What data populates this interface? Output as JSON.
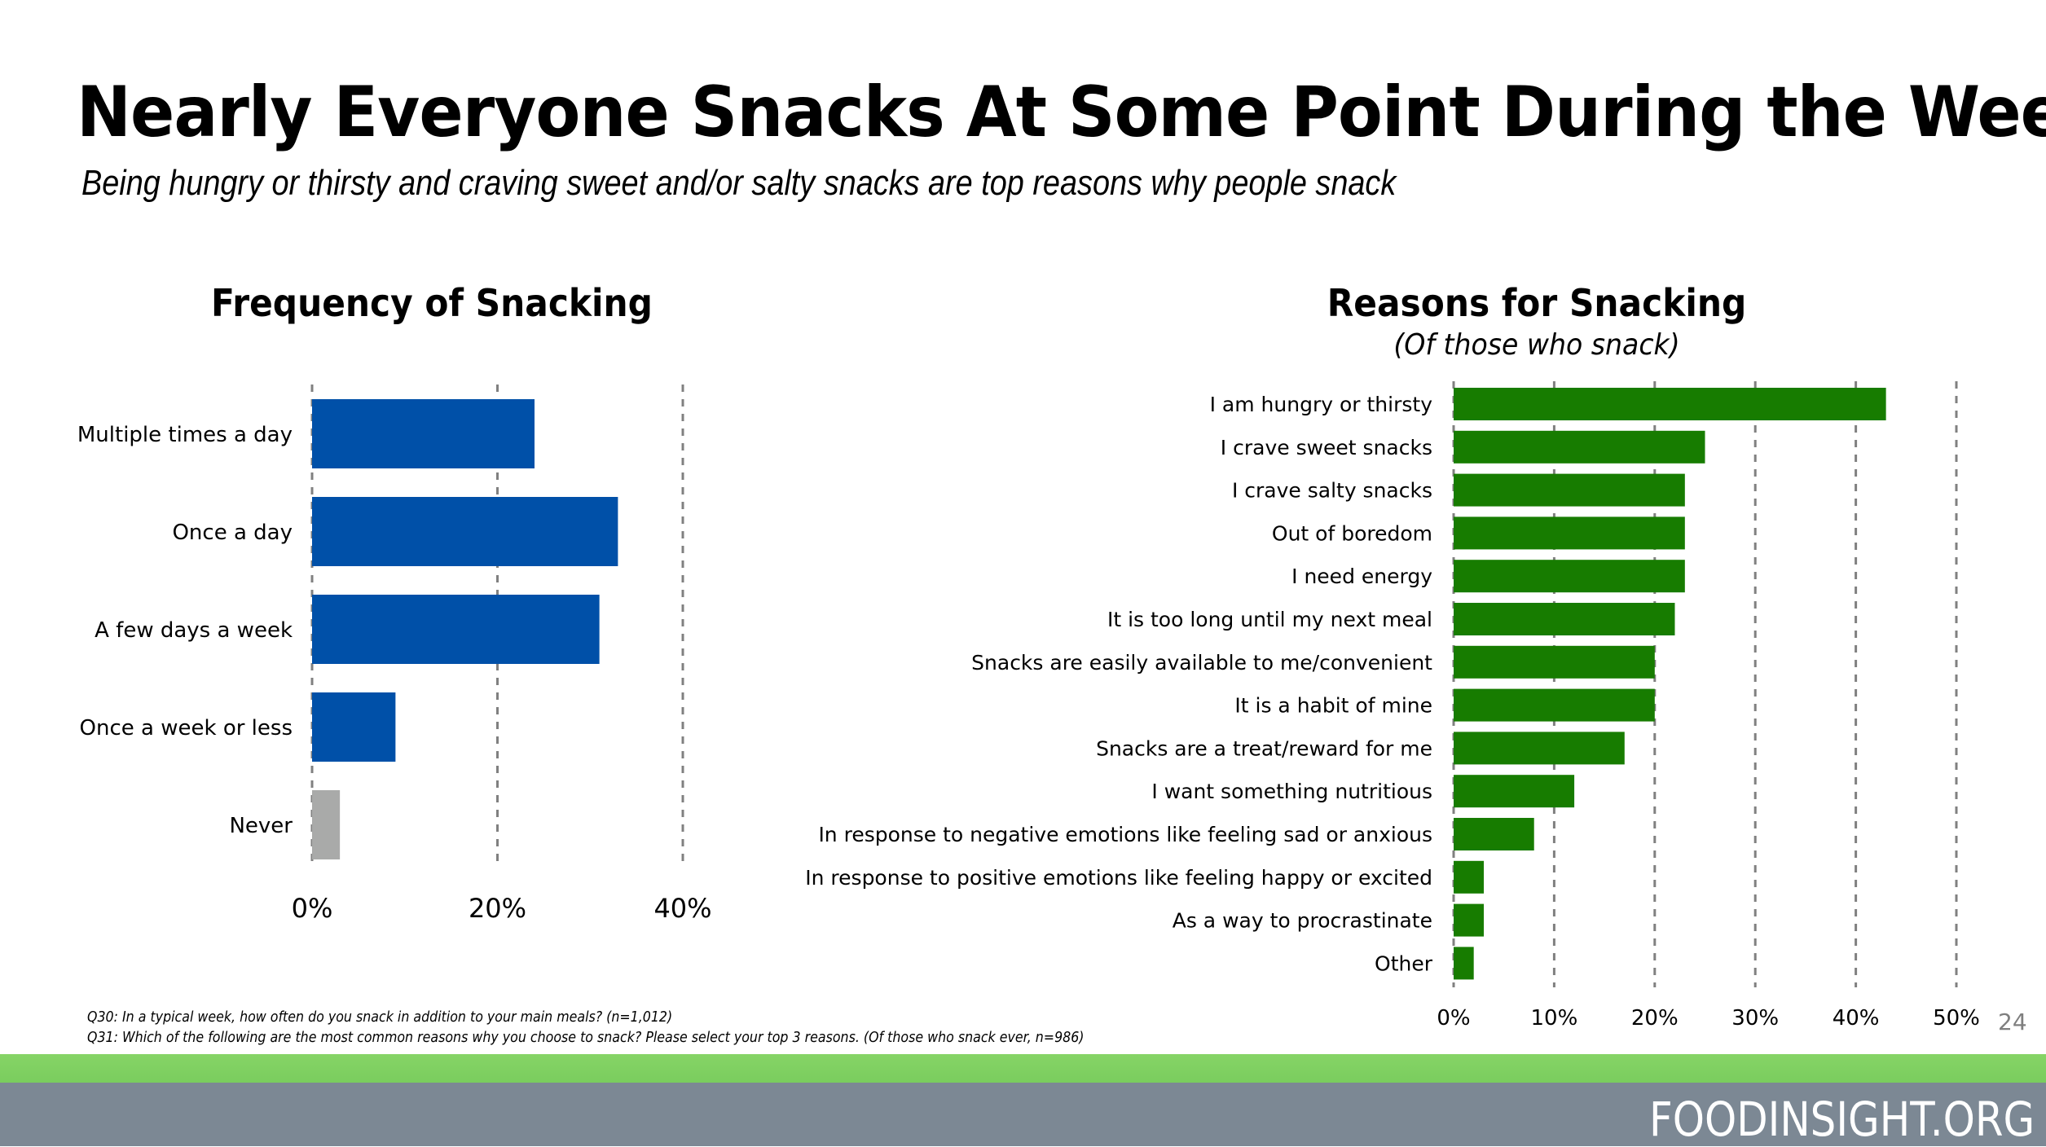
{
  "header": {
    "title": "Nearly Everyone Snacks At Some Point During the Week",
    "subtitle": "Being hungry or thirsty and craving sweet and/or salty snacks are top reasons why people snack"
  },
  "colors": {
    "frequency_bar": "#0050a8",
    "never_bar": "#a9aaa9",
    "reasons_bar": "#177c00",
    "footer_green": "#7dcf60",
    "footer_gray": "#7c8894"
  },
  "chart_data": [
    {
      "type": "bar",
      "orientation": "horizontal",
      "title": "Frequency of Snacking",
      "subtitle": "",
      "categories": [
        "Multiple times a day",
        "Once a day",
        "A few days a week",
        "Once a week or less",
        "Never"
      ],
      "values": [
        24,
        33,
        31,
        9,
        3
      ],
      "unit": "%",
      "xlabel": "",
      "ylabel": "",
      "xlim": [
        0,
        40
      ],
      "xticks": [
        "0%",
        "20%",
        "40%"
      ],
      "grid": "vertical dashed",
      "legend": "none"
    },
    {
      "type": "bar",
      "orientation": "horizontal",
      "title": "Reasons for Snacking",
      "subtitle": "(Of those who snack)",
      "categories": [
        "I am hungry or thirsty",
        "I crave sweet snacks",
        "I crave salty snacks",
        "Out of boredom",
        "I need energy",
        "It is too long until my next meal",
        "Snacks are easily available to me/convenient",
        "It is a habit of mine",
        "Snacks are a treat/reward for me",
        "I want something nutritious",
        "In response to negative emotions like feeling sad or anxious",
        "In response to positive emotions like feeling happy or excited",
        "As a way to procrastinate",
        "Other"
      ],
      "values": [
        43,
        25,
        23,
        23,
        23,
        22,
        20,
        20,
        17,
        12,
        8,
        3,
        3,
        2
      ],
      "unit": "%",
      "xlabel": "",
      "ylabel": "",
      "xlim": [
        0,
        50
      ],
      "xticks": [
        "0%",
        "10%",
        "20%",
        "30%",
        "40%",
        "50%"
      ],
      "grid": "vertical dashed",
      "legend": "none"
    }
  ],
  "footnotes": [
    "Q30: In a typical week, how often do you snack in addition to your main meals? (n=1,012)",
    "Q31: Which of the following are the most common reasons why you choose to snack? Please select your top 3 reasons. (Of those who snack ever, n=986)"
  ],
  "page_number": "24",
  "footer": {
    "brand": "FOODINSIGHT.ORG"
  }
}
